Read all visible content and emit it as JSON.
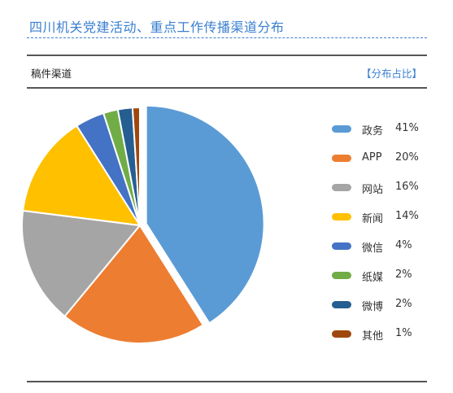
{
  "header": {
    "title": "四川机关党建活动、重点工作传播渠道分布",
    "subtitle": "稿件渠道",
    "tag": "【分布占比】"
  },
  "chart_data": {
    "type": "pie",
    "title": "四川机关党建活动、重点工作传播渠道分布",
    "categories": [
      "政务",
      "APP",
      "网站",
      "新闻",
      "微信",
      "纸媒",
      "微博",
      "其他"
    ],
    "values": [
      41,
      20,
      16,
      14,
      4,
      2,
      2,
      1
    ],
    "value_labels": [
      "41%",
      "20%",
      "16%",
      "14%",
      "4%",
      "2%",
      "2%",
      "1%"
    ],
    "unit": "%",
    "colors": [
      "#5b9bd5",
      "#ed7d31",
      "#a5a5a5",
      "#ffc000",
      "#4472c4",
      "#70ad47",
      "#255e91",
      "#9e480e"
    ],
    "exploded": "政务",
    "legend": "right"
  }
}
